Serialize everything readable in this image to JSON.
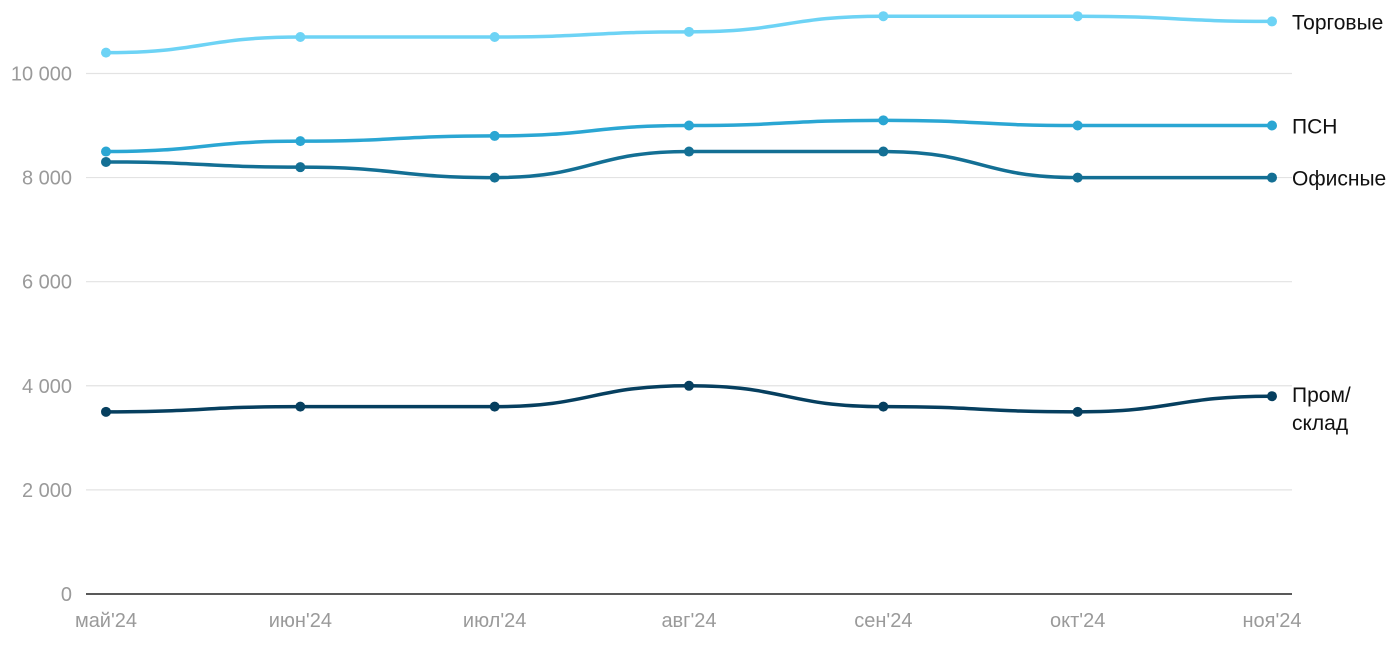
{
  "chart_data": {
    "type": "line",
    "title": "",
    "xlabel": "",
    "ylabel": "",
    "categories": [
      "май'24",
      "июн'24",
      "июл'24",
      "авг'24",
      "сен'24",
      "окт'24",
      "ноя'24"
    ],
    "ylim": [
      0,
      11200
    ],
    "yticks": [
      0,
      2000,
      4000,
      6000,
      8000,
      10000
    ],
    "ytick_labels": [
      "0",
      "2 000",
      "4 000",
      "6 000",
      "8 000",
      "10 000"
    ],
    "grid": true,
    "legend": "inline labels at right end of lines",
    "series": [
      {
        "name": "Торговые",
        "label_lines": [
          "Торговые"
        ],
        "color": "#6dd3f5",
        "values": [
          10400,
          10700,
          10700,
          10800,
          11100,
          11100,
          11000
        ]
      },
      {
        "name": "ПСН",
        "label_lines": [
          "ПСН"
        ],
        "color": "#2aa6d3",
        "values": [
          8500,
          8700,
          8800,
          9000,
          9100,
          9000,
          9000
        ]
      },
      {
        "name": "Офисные",
        "label_lines": [
          "Офисные"
        ],
        "color": "#136f94",
        "values": [
          8300,
          8200,
          8000,
          8500,
          8500,
          8000,
          8000
        ]
      },
      {
        "name": "Пром/склад",
        "label_lines": [
          "Пром/",
          "склад"
        ],
        "color": "#063f5f",
        "values": [
          3500,
          3600,
          3600,
          4000,
          3600,
          3500,
          3800
        ]
      }
    ]
  }
}
